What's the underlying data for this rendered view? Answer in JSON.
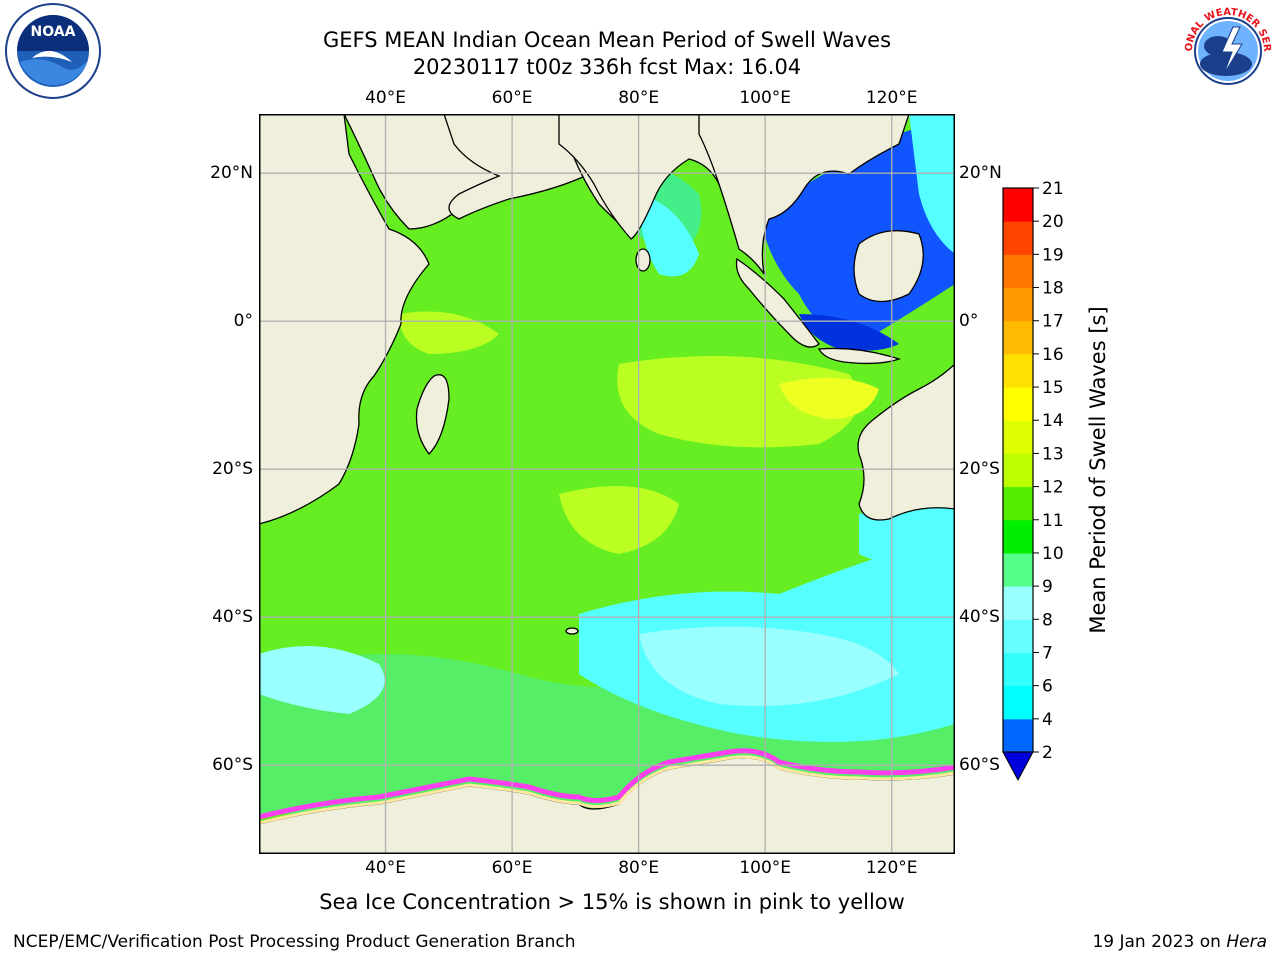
{
  "header": {
    "title_line1": "GEFS MEAN Indian Ocean Mean Period of Swell Waves",
    "title_line2": "20230117 t00z 336h fcst   Max: 16.04"
  },
  "logos": {
    "left": {
      "icon": "noaa-logo-icon",
      "text": "NOAA"
    },
    "right": {
      "icon": "nws-logo-icon",
      "text": "NATIONAL WEATHER SERVICE"
    }
  },
  "map": {
    "lon_ticks": [
      "40°E",
      "60°E",
      "80°E",
      "100°E",
      "120°E"
    ],
    "lat_ticks": [
      "20°N",
      "0°",
      "20°S",
      "40°S",
      "60°S"
    ],
    "lon_range": [
      20,
      130
    ],
    "lat_range": [
      -72,
      28
    ],
    "land_color": "#efefdc",
    "ice_colors": [
      "#ff3ef0",
      "#ff99cc",
      "#ffe9a0"
    ]
  },
  "colorbar": {
    "label": "Mean Period of Swell Waves [s]",
    "ticks": [
      "2",
      "4",
      "6",
      "7",
      "8",
      "9",
      "10",
      "11",
      "12",
      "13",
      "14",
      "15",
      "16",
      "17",
      "18",
      "19",
      "20",
      "21"
    ],
    "colors": [
      "#0066ff",
      "#00ffff",
      "#33ffff",
      "#66ffff",
      "#99ffff",
      "#55ff88",
      "#00ee00",
      "#55ee00",
      "#bbff00",
      "#ddff00",
      "#ffff00",
      "#ffe000",
      "#ffbb00",
      "#ff9900",
      "#ff7700",
      "#ff4400",
      "#ff0000"
    ],
    "extend_color": "#0000dd"
  },
  "caption": "Sea Ice Concentration > 15% is shown in pink to yellow",
  "footer": {
    "left": "NCEP/EMC/Verification Post Processing Product Generation Branch",
    "right_prefix": "19 Jan 2023 on ",
    "right_host": "Hera"
  }
}
